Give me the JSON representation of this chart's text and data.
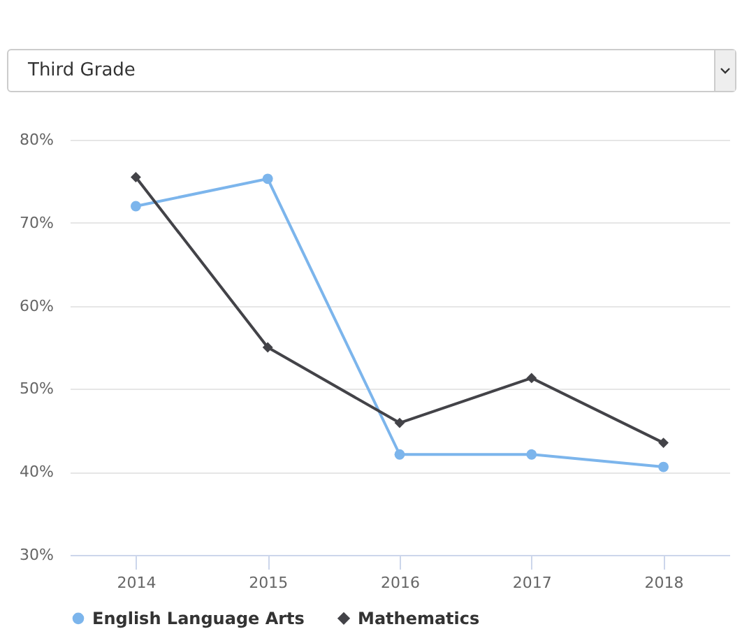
{
  "chart_data": {
    "type": "line",
    "annotations": [
      "Third Grade"
    ],
    "categories": [
      "2014",
      "2015",
      "2016",
      "2017",
      "2018"
    ],
    "series": [
      {
        "name": "English Language Arts",
        "color": "#7cb5ec",
        "marker": "circle",
        "values": [
          72.0,
          75.3,
          42.1,
          42.1,
          40.6
        ]
      },
      {
        "name": "Mathematics",
        "color": "#434348",
        "marker": "diamond",
        "values": [
          75.5,
          55.0,
          45.9,
          51.3,
          43.5
        ]
      }
    ],
    "ylim": [
      30,
      80
    ],
    "yticks": [
      {
        "value": 30,
        "label": "30%"
      },
      {
        "value": 40,
        "label": "40%"
      },
      {
        "value": 50,
        "label": "50%"
      },
      {
        "value": 60,
        "label": "60%"
      },
      {
        "value": 70,
        "label": "70%"
      },
      {
        "value": 80,
        "label": "80%"
      }
    ],
    "grid": "y",
    "legend": "bottom"
  }
}
